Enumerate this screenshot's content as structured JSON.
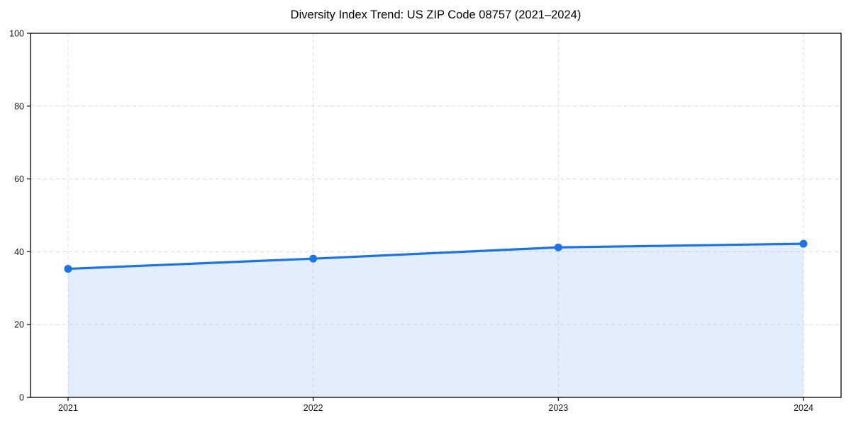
{
  "chart_data": {
    "type": "area",
    "title": "Diversity Index Trend: US ZIP Code 08757 (2021–2024)",
    "series_name": "Diversity Index",
    "categories": [
      "2021",
      "2022",
      "2023",
      "2024"
    ],
    "values": [
      35.3,
      38.1,
      41.2,
      42.2
    ],
    "xlabel": "",
    "ylabel": "",
    "ylim": [
      0,
      100
    ],
    "yticks": [
      0,
      20,
      40,
      60,
      80,
      100
    ],
    "grid": true,
    "grid_style": "dashed",
    "legend": false,
    "colors": {
      "line": "#1a73e8",
      "marker": "#1a73e8",
      "fill": "rgba(26,115,232,0.12)",
      "grid": "#dcdcdc",
      "axis": "#000000",
      "tick_text": "#1a1a1a",
      "background": "#ffffff"
    }
  }
}
